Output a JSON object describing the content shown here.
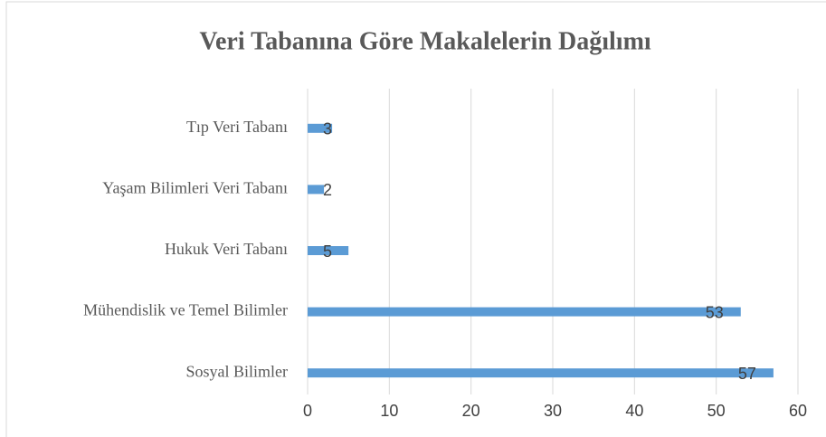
{
  "chart_data": {
    "type": "barh",
    "title": "Veri Tabanına Göre Makalelerin Dağılımı",
    "categories": [
      "Tıp Veri Tabanı",
      "Yaşam Bilimleri Veri Tabanı",
      "Hukuk Veri Tabanı",
      "Mühendislik ve Temel Bilimler",
      "Sosyal Bilimler"
    ],
    "values": [
      3,
      2,
      5,
      53,
      57
    ],
    "color": "#5b9bd5",
    "xlim": [
      0,
      60
    ],
    "xticks": [
      0,
      10,
      20,
      30,
      40,
      50,
      60
    ],
    "grid": true,
    "data_labels": true
  }
}
